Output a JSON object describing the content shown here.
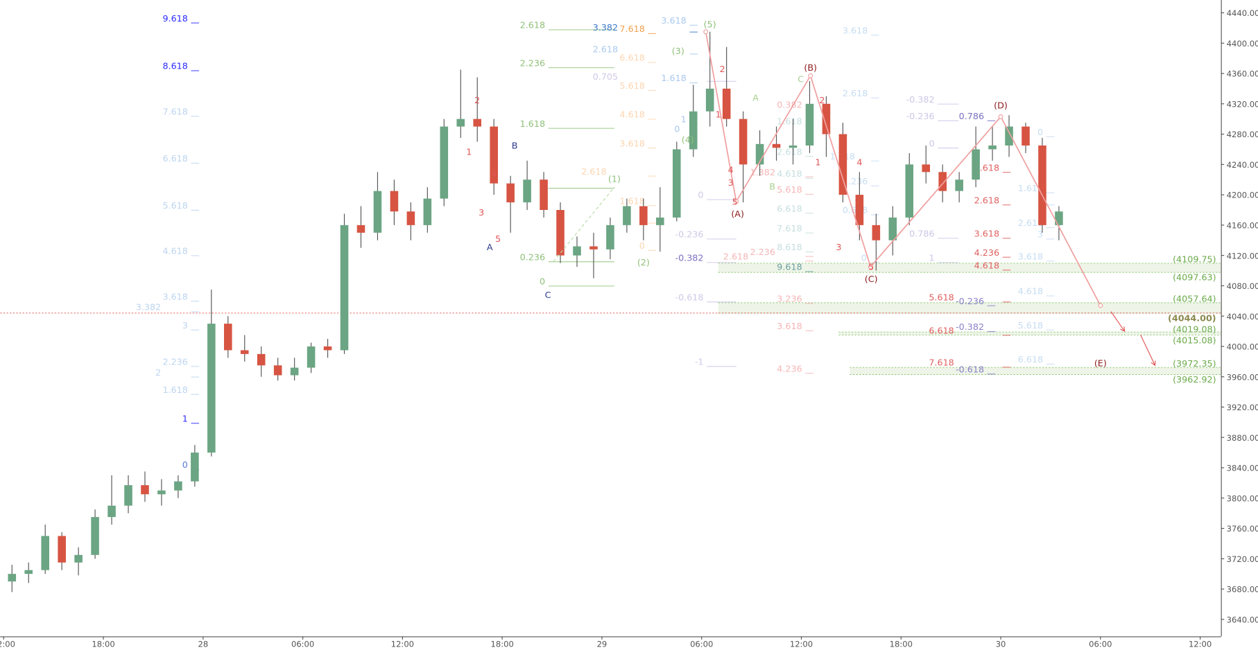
{
  "chart_data": {
    "type": "candlestick",
    "title": "",
    "xlabel": "",
    "ylabel": "",
    "ylim": [
      3620,
      4460
    ],
    "grid": false,
    "colors": {
      "up": "#6ba583",
      "down": "#d75442",
      "wick": "#555555",
      "axis": "#555555",
      "current_price_line": "#e05050",
      "zone_fill": "#eef4e8",
      "zone_border": "#8cc870",
      "zigzag": "#f0a0a0"
    },
    "y_ticks": [
      "4440.00",
      "4400.00",
      "4360.00",
      "4320.00",
      "4280.00",
      "4240.00",
      "4200.00",
      "4160.00",
      "4120.00",
      "4080.00",
      "4040.00",
      "4000.00",
      "3960.00",
      "3920.00",
      "3880.00",
      "3840.00",
      "3800.00",
      "3760.00",
      "3720.00",
      "3680.00",
      "3640.00"
    ],
    "x_ticks": [
      {
        "t": "27 12:00",
        "label": "12:00"
      },
      {
        "t": "27 18:00",
        "label": "18:00"
      },
      {
        "t": "28 00:00",
        "label": "28"
      },
      {
        "t": "28 06:00",
        "label": "06:00"
      },
      {
        "t": "28 12:00",
        "label": "12:00"
      },
      {
        "t": "28 18:00",
        "label": "18:00"
      },
      {
        "t": "29 00:00",
        "label": "29"
      },
      {
        "t": "29 06:00",
        "label": "06:00"
      },
      {
        "t": "29 12:00",
        "label": "12:00"
      },
      {
        "t": "29 18:00",
        "label": "18:00"
      },
      {
        "t": "30 00:00",
        "label": "30"
      },
      {
        "t": "30 06:00",
        "label": "06:00"
      },
      {
        "t": "30 12:00",
        "label": "12:00"
      }
    ],
    "candles": [
      [
        "27 12:00",
        3690,
        3712,
        3676,
        3700
      ],
      [
        "27 13:00",
        3700,
        3715,
        3688,
        3705
      ],
      [
        "27 14:00",
        3705,
        3765,
        3700,
        3750
      ],
      [
        "27 15:00",
        3750,
        3755,
        3705,
        3715
      ],
      [
        "27 16:00",
        3715,
        3735,
        3698,
        3725
      ],
      [
        "27 17:00",
        3725,
        3785,
        3720,
        3775
      ],
      [
        "27 18:00",
        3775,
        3830,
        3765,
        3790
      ],
      [
        "27 19:00",
        3790,
        3830,
        3780,
        3817
      ],
      [
        "27 20:00",
        3817,
        3835,
        3795,
        3805
      ],
      [
        "27 21:00",
        3805,
        3825,
        3790,
        3810
      ],
      [
        "27 22:00",
        3810,
        3830,
        3800,
        3822
      ],
      [
        "27 23:00",
        3822,
        3870,
        3815,
        3860
      ],
      [
        "28 00:00",
        3860,
        4075,
        3855,
        4030
      ],
      [
        "28 01:00",
        4030,
        4040,
        3985,
        3995
      ],
      [
        "28 02:00",
        3995,
        4015,
        3980,
        3990
      ],
      [
        "28 03:00",
        3990,
        4000,
        3960,
        3975
      ],
      [
        "28 04:00",
        3975,
        3985,
        3955,
        3962
      ],
      [
        "28 05:00",
        3962,
        3985,
        3955,
        3972
      ],
      [
        "28 06:00",
        3972,
        4005,
        3965,
        4000
      ],
      [
        "28 07:00",
        4000,
        4010,
        3985,
        3995
      ],
      [
        "28 08:00",
        3995,
        4175,
        3990,
        4160
      ],
      [
        "28 09:00",
        4160,
        4185,
        4130,
        4150
      ],
      [
        "28 10:00",
        4150,
        4230,
        4140,
        4205
      ],
      [
        "28 11:00",
        4205,
        4220,
        4160,
        4178
      ],
      [
        "28 12:00",
        4178,
        4190,
        4140,
        4160
      ],
      [
        "28 13:00",
        4160,
        4210,
        4150,
        4195
      ],
      [
        "28 14:00",
        4195,
        4300,
        4185,
        4290
      ],
      [
        "28 15:00",
        4290,
        4365,
        4275,
        4300
      ],
      [
        "28 16:00",
        4300,
        4355,
        4270,
        4290
      ],
      [
        "28 17:00",
        4290,
        4300,
        4200,
        4215
      ],
      [
        "28 18:00",
        4215,
        4225,
        4150,
        4190
      ],
      [
        "28 19:00",
        4190,
        4245,
        4180,
        4220
      ],
      [
        "28 20:00",
        4220,
        4230,
        4170,
        4180
      ],
      [
        "28 21:00",
        4180,
        4190,
        4110,
        4120
      ],
      [
        "28 22:00",
        4120,
        4145,
        4105,
        4132
      ],
      [
        "28 23:00",
        4132,
        4150,
        4090,
        4128
      ],
      [
        "29 00:00",
        4128,
        4170,
        4115,
        4160
      ],
      [
        "29 01:00",
        4160,
        4195,
        4150,
        4185
      ],
      [
        "29 02:00",
        4185,
        4195,
        4140,
        4160
      ],
      [
        "29 03:00",
        4160,
        4210,
        4125,
        4170
      ],
      [
        "29 04:00",
        4170,
        4270,
        4165,
        4260
      ],
      [
        "29 05:00",
        4260,
        4345,
        4250,
        4310
      ],
      [
        "29 06:00",
        4310,
        4415,
        4290,
        4340
      ],
      [
        "29 07:00",
        4340,
        4395,
        4290,
        4300
      ],
      [
        "29 08:00",
        4300,
        4310,
        4190,
        4240
      ],
      [
        "29 09:00",
        4240,
        4285,
        4225,
        4267
      ],
      [
        "29 10:00",
        4267,
        4290,
        4245,
        4262
      ],
      [
        "29 11:00",
        4262,
        4300,
        4240,
        4265
      ],
      [
        "29 12:00",
        4265,
        4350,
        4255,
        4320
      ],
      [
        "29 13:00",
        4320,
        4330,
        4250,
        4280
      ],
      [
        "29 14:00",
        4280,
        4295,
        4190,
        4200
      ],
      [
        "29 15:00",
        4200,
        4230,
        4140,
        4160
      ],
      [
        "29 16:00",
        4160,
        4175,
        4100,
        4140
      ],
      [
        "29 17:00",
        4140,
        4185,
        4120,
        4170
      ],
      [
        "29 18:00",
        4170,
        4255,
        4160,
        4240
      ],
      [
        "29 19:00",
        4240,
        4265,
        4215,
        4230
      ],
      [
        "29 20:00",
        4230,
        4240,
        4190,
        4205
      ],
      [
        "29 21:00",
        4205,
        4230,
        4190,
        4220
      ],
      [
        "29 22:00",
        4220,
        4290,
        4210,
        4260
      ],
      [
        "29 23:00",
        4260,
        4290,
        4245,
        4265
      ],
      [
        "30 00:00",
        4265,
        4305,
        4250,
        4290
      ],
      [
        "30 01:00",
        4290,
        4295,
        4255,
        4265
      ],
      [
        "30 02:00",
        4265,
        4275,
        4150,
        4160
      ],
      [
        "30 03:00",
        4160,
        4185,
        4140,
        4178
      ]
    ],
    "current_price": 4044.0,
    "zones": [
      {
        "high": 4109.75,
        "low": 4097.63,
        "start": "29 07:00",
        "labels": [
          "(4109.75)",
          "(4097.63)"
        ]
      },
      {
        "high": 4057.64,
        "low": 4044.0,
        "start": "29 07:00",
        "labels": [
          "(4057.64)",
          "(4044.00)"
        ]
      },
      {
        "high": 4019.08,
        "low": 4015.08,
        "start": "29 14:15",
        "labels": [
          "(4019.08)",
          "(4015.08)"
        ]
      },
      {
        "high": 3972.35,
        "low": 3962.92,
        "start": "29 14:55",
        "labels": [
          "(3972.35)",
          "(3962.92)"
        ]
      }
    ],
    "zigzag": [
      [
        "29 06:15",
        4415
      ],
      [
        "29 08:05",
        4191
      ],
      [
        "29 12:33",
        4357
      ],
      [
        "29 16:10",
        4105
      ],
      [
        "30 00:00",
        4303
      ],
      [
        "30 06:00",
        4054
      ]
    ],
    "arrows": [
      [
        [
          "30 06:38",
          4046
        ],
        [
          "30 07:27",
          4020
        ]
      ],
      [
        [
          "30 08:25",
          4015
        ],
        [
          "30 09:17",
          3975
        ]
      ]
    ],
    "dashed_trend": [
      [
        "28 21:05",
        4112
      ],
      [
        "29 00:45",
        4210
      ]
    ],
    "fib_groups": [
      {
        "time": "27 23:05",
        "color": "#bcd4f0",
        "labels": [
          [
            "9.618",
            4433,
            "#2b2bff"
          ],
          [
            "8.618",
            4370,
            "#2b2bff"
          ],
          [
            "7.618",
            4310
          ],
          [
            "6.618",
            4248
          ],
          [
            "5.618",
            4186
          ],
          [
            "4.618",
            4126
          ],
          [
            "3.618",
            4066
          ],
          [
            "3.382",
            4052
          ],
          [
            "3",
            4028
          ],
          [
            "2.236",
            3980
          ],
          [
            "2",
            3966
          ],
          [
            "1.618",
            3943
          ],
          [
            "1",
            3905,
            "#2b2bff"
          ],
          [
            "0",
            3844,
            "#5a7ad8"
          ]
        ]
      },
      {
        "time": "28 20:35",
        "color": "#8fc07a",
        "line_to": "29 00:45",
        "line_color": "#a8d196",
        "labels": [
          [
            "2.618",
            4424
          ],
          [
            "2.236",
            4374
          ],
          [
            "1.618",
            4294
          ],
          [
            "1",
            4215
          ],
          [
            "0.236",
            4118
          ],
          [
            "0",
            4086
          ]
        ]
      },
      {
        "time": "29 02:35",
        "color": "#fcd5b0",
        "labels": [
          [
            "7.618",
            4419,
            "#f0a04b"
          ],
          [
            "6.618",
            4381
          ],
          [
            "5.618",
            4344
          ],
          [
            "4.618",
            4306
          ],
          [
            "3.618",
            4268
          ],
          [
            "2.618",
            4231
          ],
          [
            "1.618",
            4192
          ],
          [
            "1",
            4169
          ],
          [
            "0",
            4133
          ]
        ]
      },
      {
        "time": "29 05:05",
        "color": "#a9c8ee",
        "labels": [
          [
            "3.618",
            4430
          ],
          [
            "3.382",
            4421,
            "#3b78c8"
          ],
          [
            "2.618",
            4392
          ],
          [
            "1.618",
            4354
          ],
          [
            "1",
            4300
          ],
          [
            "0",
            4287
          ]
        ]
      },
      {
        "time": "29 06:07",
        "color": "#cfc8e6",
        "line_to": "29 08:05",
        "line_color": "#d8d0ee",
        "labels": [
          [
            "0.705",
            4356
          ],
          [
            "0",
            4200
          ],
          [
            "-0.236",
            4148
          ],
          [
            "-0.382",
            4117,
            "#7a70c0"
          ],
          [
            "-0.618",
            4065
          ],
          [
            "-1",
            3980
          ]
        ]
      },
      {
        "time": "29 12:03",
        "color": "#c6dede",
        "labels": [
          [
            "1.618",
            4297
          ],
          [
            "2.618",
            4257
          ],
          [
            "4.618",
            4228
          ],
          [
            "6.618",
            4182
          ],
          [
            "7.618",
            4156
          ],
          [
            "8.618",
            4131
          ],
          [
            "9.618",
            4105,
            "#6a9f9f"
          ]
        ]
      },
      {
        "time": "29 12:03",
        "color": "#f5b5b5",
        "labels": [
          [
            "0.382",
            4319
          ],
          [
            "1.382",
            4230
          ],
          [
            "5.618",
            4207
          ],
          [
            "2.236",
            4125
          ],
          [
            "2.618",
            4119
          ],
          [
            "3.236",
            4063
          ],
          [
            "3.618",
            4027
          ],
          [
            "4.236",
            3971
          ]
        ]
      },
      {
        "time": "29 16:00",
        "color": "#c6dcf2",
        "labels": [
          [
            "3.618",
            4417
          ],
          [
            "2.618",
            4334
          ],
          [
            "1.618",
            4251
          ],
          [
            "1.236",
            4218
          ],
          [
            "0.618",
            4180
          ],
          [
            "0",
            4117
          ]
        ]
      },
      {
        "time": "29 20:01",
        "color": "#cdc6e6",
        "line_to": "29 18:00",
        "line_color": "#d8d0ee",
        "labels": [
          [
            "-0.382",
            4326
          ],
          [
            "-0.236",
            4304
          ],
          [
            "0",
            4268
          ],
          [
            "0.786",
            4149
          ],
          [
            "1",
            4117
          ]
        ]
      },
      {
        "time": "29 23:00",
        "color": "#8a80c8",
        "labels": [
          [
            "0.786",
            4304,
            "#7a70c0"
          ],
          [
            "-0.236",
            4060
          ],
          [
            "-0.382",
            4026
          ],
          [
            "-0.618",
            3970
          ]
        ]
      },
      {
        "time": "29 23:55",
        "color": "#e06060",
        "labels": [
          [
            "1.618",
            4236
          ],
          [
            "2.618",
            4193
          ],
          [
            "3.618",
            4149
          ],
          [
            "4.236",
            4124
          ],
          [
            "4.618",
            4107
          ],
          [
            "5.618",
            4065
          ],
          [
            "6.618",
            4021
          ],
          [
            "7.618",
            3979
          ]
        ]
      },
      {
        "time": "30 02:33",
        "color": "#c6dcf2",
        "labels": [
          [
            "0",
            4283
          ],
          [
            "1.618",
            4209
          ],
          [
            "2",
            4193
          ],
          [
            "2.618",
            4163
          ],
          [
            "3",
            4148
          ],
          [
            "3.618",
            4119
          ],
          [
            "4.618",
            4073
          ],
          [
            "5.618",
            4028
          ],
          [
            "6.618",
            3983
          ]
        ]
      }
    ],
    "wave_labels": [
      [
        "(1)",
        "29 00:45",
        4221,
        "#8fc07a"
      ],
      [
        "(2)",
        "29 02:30",
        4111,
        "#8fc07a"
      ],
      [
        "(3)",
        "29 04:35",
        4390,
        "#8fc07a"
      ],
      [
        "(4)",
        "29 05:10",
        4273,
        "#8fc07a"
      ],
      [
        "(5)",
        "29 06:30",
        4425,
        "#8fc07a"
      ],
      [
        "A",
        "29 09:15",
        4328,
        "#a8cf8f"
      ],
      [
        "B",
        "29 10:15",
        4211,
        "#a8cf8f"
      ],
      [
        "C",
        "29 11:58",
        4353,
        "#a8cf8f"
      ],
      [
        "(A)",
        "29 08:10",
        4175,
        "#8b1a1a"
      ],
      [
        "(B)",
        "29 12:33",
        4367,
        "#8b1a1a"
      ],
      [
        "(C)",
        "29 16:12",
        4089,
        "#8b1a1a"
      ],
      [
        "(D)",
        "30 00:00",
        4318,
        "#8b1a1a"
      ],
      [
        "(E)",
        "30 06:00",
        3978,
        "#8b1a1a"
      ],
      [
        "2",
        "28 16:30",
        4325,
        "#e05555"
      ],
      [
        "1",
        "28 16:00",
        4257,
        "#e05555"
      ],
      [
        "4",
        "28 17:30",
        4229,
        "#e05555"
      ],
      [
        "3",
        "28 16:45",
        4177,
        "#e05555"
      ],
      [
        "5",
        "28 17:45",
        4142,
        "#e05555"
      ],
      [
        "2",
        "29 07:15",
        4366,
        "#e05555"
      ],
      [
        "1",
        "29 07:00",
        4306,
        "#e05555"
      ],
      [
        "4",
        "29 07:45",
        4233,
        "#e05555"
      ],
      [
        "3",
        "29 07:45",
        4216,
        "#e05555"
      ],
      [
        "5",
        "29 08:00",
        4191,
        "#e05555"
      ],
      [
        "2",
        "29 13:15",
        4325,
        "#e05555"
      ],
      [
        "1",
        "29 13:00",
        4243,
        "#e05555"
      ],
      [
        "4",
        "29 15:30",
        4243,
        "#e05555"
      ],
      [
        "3",
        "29 14:15",
        4131,
        "#e05555"
      ],
      [
        "5",
        "29 16:12",
        4105,
        "#e05555"
      ],
      [
        "A",
        "28 17:15",
        4131,
        "#2a3a8c"
      ],
      [
        "B",
        "28 18:45",
        4265,
        "#2a3a8c"
      ],
      [
        "C",
        "28 20:45",
        4068,
        "#2a3a8c"
      ]
    ]
  }
}
